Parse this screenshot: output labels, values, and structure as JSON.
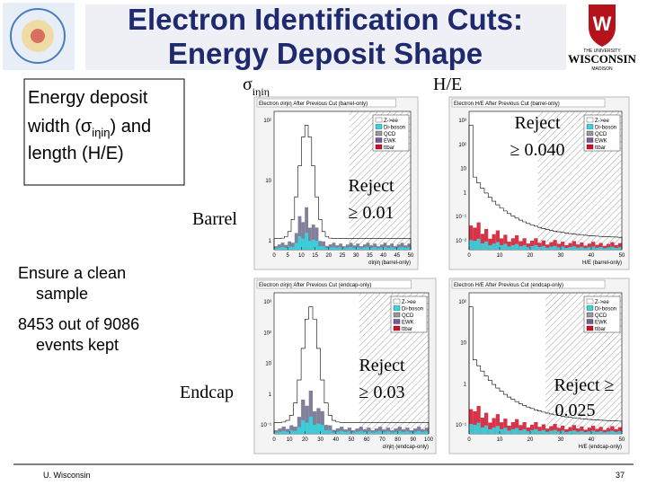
{
  "header": {
    "title_lines": [
      "Electron Identification Cuts:",
      "Energy Deposit Shape"
    ]
  },
  "logo": {
    "lines": [
      "THE UNIVERSITY",
      "WISCONSIN",
      "MADISON"
    ]
  },
  "textbox": {
    "line1": "Energy deposit",
    "line2_pre": "width (σ",
    "line2_sub": "iηiη",
    "line2_post": ") and",
    "line3": "length (H/E)"
  },
  "column_headers": {
    "sigma": "σ",
    "sigma_sub": "iηiη",
    "he": "H/E"
  },
  "row_labels": [
    "Barrel",
    "Endcap"
  ],
  "notes": [
    [
      "Ensure a clean",
      "sample"
    ],
    [
      "8453 out of 9086",
      "events kept"
    ]
  ],
  "plots": [
    {
      "title": "Electron σiηiη After Previous Cut (barrel-only)",
      "xlabel": "σiηiη (barrel-only)",
      "xticks": [
        "0",
        "5",
        "10",
        "15",
        "20",
        "25",
        "30",
        "35",
        "40",
        "45",
        "50"
      ],
      "yticks": [
        "10²",
        "10",
        "1"
      ],
      "cut": [
        "Reject",
        "≥ 0.01"
      ]
    },
    {
      "title": "Electron H/E After Previous Cut (barrel-only)",
      "xlabel": "H/E (barrel-only)",
      "xticks": [
        "0",
        "10",
        "20",
        "30",
        "40",
        "50"
      ],
      "yticks": [
        "10³",
        "10²",
        "10",
        "1",
        "10⁻¹",
        "10⁻²"
      ],
      "cut": [
        "Reject",
        "≥ 0.040"
      ]
    },
    {
      "title": "Electron σiηiη After Previous Cut (endcap-only)",
      "xlabel": "σiηiη (endcap-only)",
      "xticks": [
        "0",
        "10",
        "20",
        "30",
        "40",
        "50",
        "60",
        "70",
        "80",
        "90",
        "100"
      ],
      "yticks": [
        "10³",
        "10²",
        "10",
        "1",
        "10⁻¹"
      ],
      "cut": [
        "Reject",
        "≥ 0.03"
      ]
    },
    {
      "title": "Electron H/E After Previous Cut (endcap-only)",
      "xlabel": "H/E (endcap-only)",
      "xticks": [
        "0",
        "10",
        "20",
        "30",
        "40",
        "50"
      ],
      "yticks": [
        "10²",
        "10",
        "1",
        "10⁻¹"
      ],
      "cut": [
        "Reject ≥",
        "0.025"
      ]
    }
  ],
  "legend": [
    "Z->ee",
    "Di-boson",
    "QCD",
    "EWK",
    "ttbar"
  ],
  "footer": {
    "left": "U. Wisconsin",
    "page": "37"
  }
}
